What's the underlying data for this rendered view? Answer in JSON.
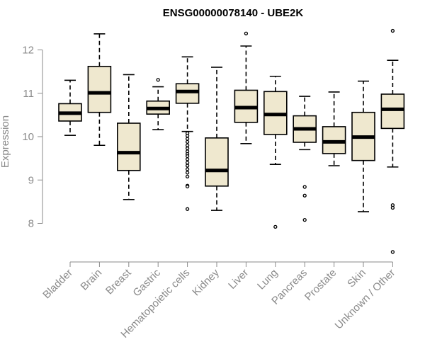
{
  "chart_data": {
    "type": "box",
    "title": "ENSG00000078140 - UBE2K",
    "xlabel": "",
    "ylabel": "Expression",
    "ylim": [
      7.2,
      12.5
    ],
    "yticks": [
      8,
      9,
      10,
      11,
      12
    ],
    "grid": false,
    "categories": [
      "Bladder",
      "Brain",
      "Breast",
      "Gastric",
      "Hematopoietic cells",
      "Kidney",
      "Liver",
      "Lung",
      "Pancreas",
      "Prostate",
      "Skin",
      "Unknown / Other"
    ],
    "boxes": [
      {
        "whisker_low": 10.03,
        "q1": 10.36,
        "median": 10.54,
        "q3": 10.76,
        "whisker_high": 11.3,
        "outliers": []
      },
      {
        "whisker_low": 9.8,
        "q1": 10.56,
        "median": 11.01,
        "q3": 11.62,
        "whisker_high": 12.37,
        "outliers": []
      },
      {
        "whisker_low": 8.55,
        "q1": 9.22,
        "median": 9.63,
        "q3": 10.31,
        "whisker_high": 11.43,
        "outliers": []
      },
      {
        "whisker_low": 10.16,
        "q1": 10.52,
        "median": 10.65,
        "q3": 10.82,
        "whisker_high": 11.15,
        "outliers": [
          11.31
        ]
      },
      {
        "whisker_low": 10.12,
        "q1": 10.77,
        "median": 11.04,
        "q3": 11.22,
        "whisker_high": 11.84,
        "outliers": [
          10.08,
          10.02,
          9.95,
          9.88,
          9.8,
          9.73,
          9.66,
          9.6,
          9.55,
          9.48,
          9.4,
          9.33,
          9.25,
          9.17,
          9.08,
          8.87,
          8.85,
          8.33
        ]
      },
      {
        "whisker_low": 8.3,
        "q1": 8.86,
        "median": 9.22,
        "q3": 9.97,
        "whisker_high": 11.6,
        "outliers": []
      },
      {
        "whisker_low": 9.84,
        "q1": 10.33,
        "median": 10.67,
        "q3": 11.07,
        "whisker_high": 12.09,
        "outliers": [
          12.38
        ]
      },
      {
        "whisker_low": 9.36,
        "q1": 10.05,
        "median": 10.51,
        "q3": 11.04,
        "whisker_high": 11.39,
        "outliers": [
          7.92
        ]
      },
      {
        "whisker_low": 9.7,
        "q1": 9.87,
        "median": 10.18,
        "q3": 10.48,
        "whisker_high": 10.93,
        "outliers": [
          8.84,
          8.64,
          8.08
        ]
      },
      {
        "whisker_low": 9.33,
        "q1": 9.61,
        "median": 9.88,
        "q3": 10.23,
        "whisker_high": 11.03,
        "outliers": []
      },
      {
        "whisker_low": 8.27,
        "q1": 9.45,
        "median": 9.99,
        "q3": 10.56,
        "whisker_high": 11.28,
        "outliers": []
      },
      {
        "whisker_low": 9.3,
        "q1": 10.19,
        "median": 10.63,
        "q3": 10.98,
        "whisker_high": 11.76,
        "outliers": [
          12.44,
          8.42,
          8.36,
          7.34
        ]
      }
    ],
    "colors": {
      "box_fill": "#efe8cf",
      "stroke": "#000000",
      "axis": "#8a8a8a"
    }
  }
}
